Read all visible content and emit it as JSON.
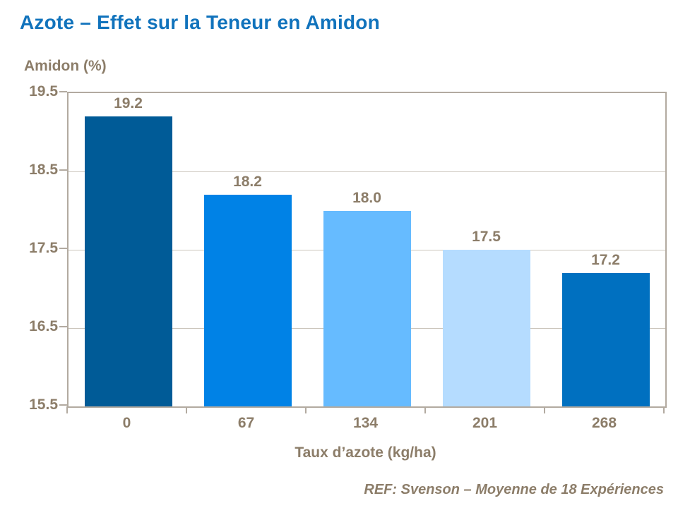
{
  "title": "Azote – Effet sur la Teneur en Amidon",
  "footer": "REF: Svenson – Moyenne de 18 Expériences",
  "colors": {
    "title": "#1173BC",
    "text": "#8C7D69",
    "axis": "#B2AAA0",
    "gridline": "#CBC5BC",
    "background": "#FFFFFF"
  },
  "chart_data": {
    "type": "bar",
    "title": "Azote – Effet sur la Teneur en Amidon",
    "categories": [
      "0",
      "67",
      "134",
      "201",
      "268"
    ],
    "values": [
      19.2,
      18.2,
      18.0,
      17.5,
      17.2
    ],
    "bar_labels": [
      "19.2",
      "18.2",
      "18.0",
      "17.5",
      "17.2"
    ],
    "bar_colors": [
      "#005B97",
      "#0082E6",
      "#66BBFF",
      "#B5DCFF",
      "#0070C0"
    ],
    "xlabel": "Taux d’azote (kg/ha)",
    "ylabel": "Amidon (%)",
    "ylim": [
      15.5,
      19.5
    ],
    "ytick_labels": [
      "19.5",
      "18.5",
      "17.5",
      "16.5",
      "15.5"
    ],
    "yticks": [
      19.5,
      18.5,
      17.5,
      16.5,
      15.5
    ],
    "grid": true,
    "legend": false
  }
}
